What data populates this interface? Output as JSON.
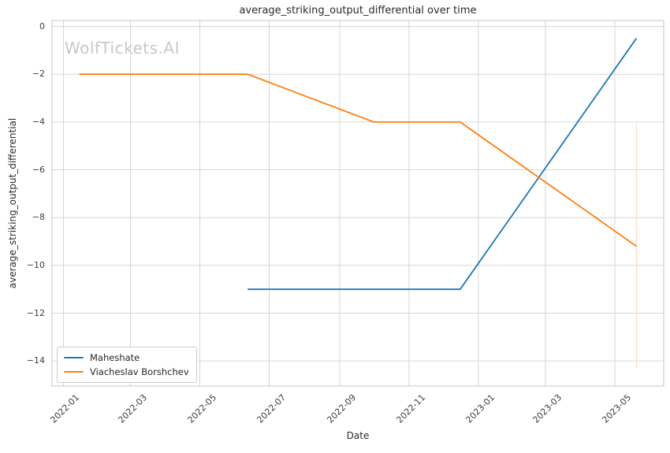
{
  "figure": {
    "watermark": "WolfTickets.AI"
  },
  "chart_data": {
    "type": "line",
    "title": "average_striking_output_differential over time",
    "xlabel": "Date",
    "ylabel": "average_striking_output_differential",
    "grid": true,
    "legend_position": "lower left",
    "xlim": [
      "2021-12-22",
      "2023-06-13"
    ],
    "ylim": [
      0.25,
      -15.05
    ],
    "x_ticks": [
      {
        "date": "2022-01-01",
        "label": "2022-01"
      },
      {
        "date": "2022-03-01",
        "label": "2022-03"
      },
      {
        "date": "2022-05-01",
        "label": "2022-05"
      },
      {
        "date": "2022-07-01",
        "label": "2022-07"
      },
      {
        "date": "2022-09-01",
        "label": "2022-09"
      },
      {
        "date": "2022-11-01",
        "label": "2022-11"
      },
      {
        "date": "2023-01-01",
        "label": "2023-01"
      },
      {
        "date": "2023-03-01",
        "label": "2023-03"
      },
      {
        "date": "2023-05-01",
        "label": "2023-05"
      }
    ],
    "y_ticks": [
      {
        "value": 0,
        "label": "0"
      },
      {
        "value": -2,
        "label": "−2"
      },
      {
        "value": -4,
        "label": "−4"
      },
      {
        "value": -6,
        "label": "−6"
      },
      {
        "value": -8,
        "label": "−8"
      },
      {
        "value": -10,
        "label": "−10"
      },
      {
        "value": -12,
        "label": "−12"
      },
      {
        "value": -14,
        "label": "−14"
      }
    ],
    "series": [
      {
        "name": "Maheshate",
        "color": "#1f77b4",
        "points": [
          [
            "2022-06-12",
            -11
          ],
          [
            "2022-12-16",
            -11
          ],
          [
            "2023-05-20",
            -0.5
          ]
        ]
      },
      {
        "name": "Viacheslav Borshchev",
        "color": "#ff7f0e",
        "points": [
          [
            "2022-01-15",
            -2
          ],
          [
            "2022-06-12",
            -2
          ],
          [
            "2022-10-01",
            -4
          ],
          [
            "2022-12-16",
            -4
          ],
          [
            "2023-05-20",
            -9.2
          ]
        ],
        "error_bar": {
          "date": "2023-05-20",
          "from": -4.1,
          "to": -14.3,
          "color": "#ffdfc3"
        }
      }
    ]
  }
}
